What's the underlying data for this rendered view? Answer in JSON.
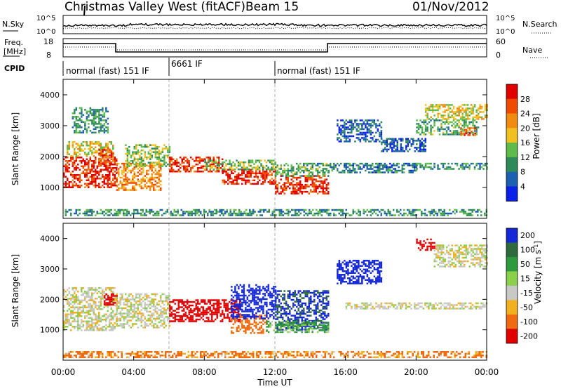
{
  "header": {
    "station": "Christmas Valley West (fitACF)",
    "beam": "Beam 15",
    "date": "01/Nov/2012"
  },
  "noise_panel": {
    "left_label": "N.Sky",
    "left_ticks": [
      "10^5",
      "10^0"
    ],
    "right_ticks": [
      "10^5",
      "10^0"
    ],
    "right_label": "N.Search"
  },
  "freq_panel": {
    "left_label_1": "Freq.",
    "left_label_2": "[MHz]",
    "left_ticks": [
      18,
      8
    ],
    "right_ticks": [
      60,
      0
    ],
    "right_label": "Nave"
  },
  "cpid": {
    "label": "CPID",
    "segments": [
      {
        "label": "normal (fast) 151 IF",
        "start": 0,
        "end": 6
      },
      {
        "label": "6661 IF",
        "start": 6,
        "end": 12
      },
      {
        "label": "normal (fast) 151 IF",
        "start": 12,
        "end": 24
      }
    ]
  },
  "chart_data": [
    {
      "type": "heatmap",
      "title": "",
      "xlabel": "Time UT",
      "ylabel": "Slant Range [km]",
      "xlim": [
        0,
        24
      ],
      "ylim": [
        0,
        4500
      ],
      "x_ticks": [
        "00:00",
        "04:00",
        "08:00",
        "12:00",
        "16:00",
        "20:00",
        "00:00"
      ],
      "y_ticks": [
        1000,
        2000,
        3000,
        4000
      ],
      "colorbar": {
        "label": "Power [dB]",
        "ticks": [
          4,
          8,
          12,
          16,
          20,
          24,
          28
        ],
        "range": [
          0,
          32
        ],
        "colors": [
          "#0a20e8",
          "#1d5fb0",
          "#2e8b57",
          "#5dbb4a",
          "#f0c020",
          "#f08a10",
          "#f04a00",
          "#e00000"
        ]
      },
      "regions": [
        {
          "t0": 0.0,
          "t1": 3.0,
          "r0": 1000,
          "r1": 2000,
          "v": 28
        },
        {
          "t0": 0.2,
          "t1": 2.8,
          "r0": 2000,
          "r1": 2500,
          "v": 18
        },
        {
          "t0": 2.0,
          "t1": 2.8,
          "r0": 1700,
          "r1": 2300,
          "v": 26
        },
        {
          "t0": 3.0,
          "t1": 5.5,
          "r0": 900,
          "r1": 1800,
          "v": 22
        },
        {
          "t0": 3.5,
          "t1": 6.0,
          "r0": 1700,
          "r1": 2400,
          "v": 14
        },
        {
          "t0": 0.5,
          "t1": 2.5,
          "r0": 2800,
          "r1": 3600,
          "v": 10
        },
        {
          "t0": 6.0,
          "t1": 9.0,
          "r0": 1500,
          "r1": 2000,
          "v": 28
        },
        {
          "t0": 9.0,
          "t1": 12.0,
          "r0": 1100,
          "r1": 1600,
          "v": 28
        },
        {
          "t0": 12.0,
          "t1": 15.0,
          "r0": 800,
          "r1": 1400,
          "v": 28
        },
        {
          "t0": 8.0,
          "t1": 12.0,
          "r0": 1600,
          "r1": 1900,
          "v": 14
        },
        {
          "t0": 12.0,
          "t1": 15.0,
          "r0": 1400,
          "r1": 1800,
          "v": 12
        },
        {
          "t0": 15.0,
          "t1": 20.0,
          "r0": 1500,
          "r1": 1800,
          "v": 8
        },
        {
          "t0": 20.0,
          "t1": 24.0,
          "r0": 1600,
          "r1": 1800,
          "v": 10
        },
        {
          "t0": 15.5,
          "t1": 18.0,
          "r0": 2500,
          "r1": 3200,
          "v": 6
        },
        {
          "t0": 18.0,
          "t1": 20.5,
          "r0": 2200,
          "r1": 2600,
          "v": 6
        },
        {
          "t0": 20.5,
          "t1": 24.0,
          "r0": 3200,
          "r1": 3700,
          "v": 18
        },
        {
          "t0": 20.0,
          "t1": 23.5,
          "r0": 2700,
          "r1": 3200,
          "v": 12
        },
        {
          "t0": 22.5,
          "t1": 23.3,
          "r0": 2700,
          "r1": 2950,
          "v": 28
        },
        {
          "t0": 0.0,
          "t1": 24.0,
          "r0": 100,
          "r1": 300,
          "v": 10
        }
      ]
    },
    {
      "type": "heatmap",
      "title": "",
      "xlabel": "Time UT",
      "ylabel": "Slant Range [km]",
      "xlim": [
        0,
        24
      ],
      "ylim": [
        0,
        4500
      ],
      "x_ticks": [
        "00:00",
        "04:00",
        "08:00",
        "12:00",
        "16:00",
        "20:00",
        "00:00"
      ],
      "y_ticks": [
        1000,
        2000,
        3000,
        4000
      ],
      "colorbar": {
        "label": "Velocity [m s^-1]",
        "ticks": [
          200,
          100,
          50,
          15,
          -15,
          -50,
          -100,
          -200
        ],
        "colors": [
          "#1428d8",
          "#2e6a3e",
          "#2e9a3e",
          "#8ad04a",
          "#c8c8c4",
          "#f0b020",
          "#f06a10",
          "#e00000"
        ]
      },
      "regions": [
        {
          "t0": 0.0,
          "t1": 3.0,
          "r0": 1000,
          "r1": 2400,
          "v": 0
        },
        {
          "t0": 2.3,
          "t1": 3.0,
          "r0": 1800,
          "r1": 2200,
          "v": -200
        },
        {
          "t0": 3.0,
          "t1": 6.0,
          "r0": 1100,
          "r1": 2200,
          "v": 0
        },
        {
          "t0": 6.0,
          "t1": 10.0,
          "r0": 1300,
          "r1": 2000,
          "v": -150
        },
        {
          "t0": 9.5,
          "t1": 11.5,
          "r0": 900,
          "r1": 1500,
          "v": -60
        },
        {
          "t0": 9.5,
          "t1": 12.0,
          "r0": 1400,
          "r1": 2500,
          "v": 200
        },
        {
          "t0": 12.0,
          "t1": 15.0,
          "r0": 1000,
          "r1": 2300,
          "v": 160
        },
        {
          "t0": 11.5,
          "t1": 15.0,
          "r0": 900,
          "r1": 1300,
          "v": 40
        },
        {
          "t0": 15.5,
          "t1": 18.0,
          "r0": 2500,
          "r1": 3300,
          "v": 200
        },
        {
          "t0": 16.0,
          "t1": 24.0,
          "r0": 1700,
          "r1": 1900,
          "v": 0
        },
        {
          "t0": 21.0,
          "t1": 24.0,
          "r0": 3100,
          "r1": 3800,
          "v": 0
        },
        {
          "t0": 20.0,
          "t1": 21.0,
          "r0": 3600,
          "r1": 4000,
          "v": -200
        },
        {
          "t0": 0.0,
          "t1": 24.0,
          "r0": 100,
          "r1": 300,
          "v": -40
        }
      ]
    }
  ]
}
